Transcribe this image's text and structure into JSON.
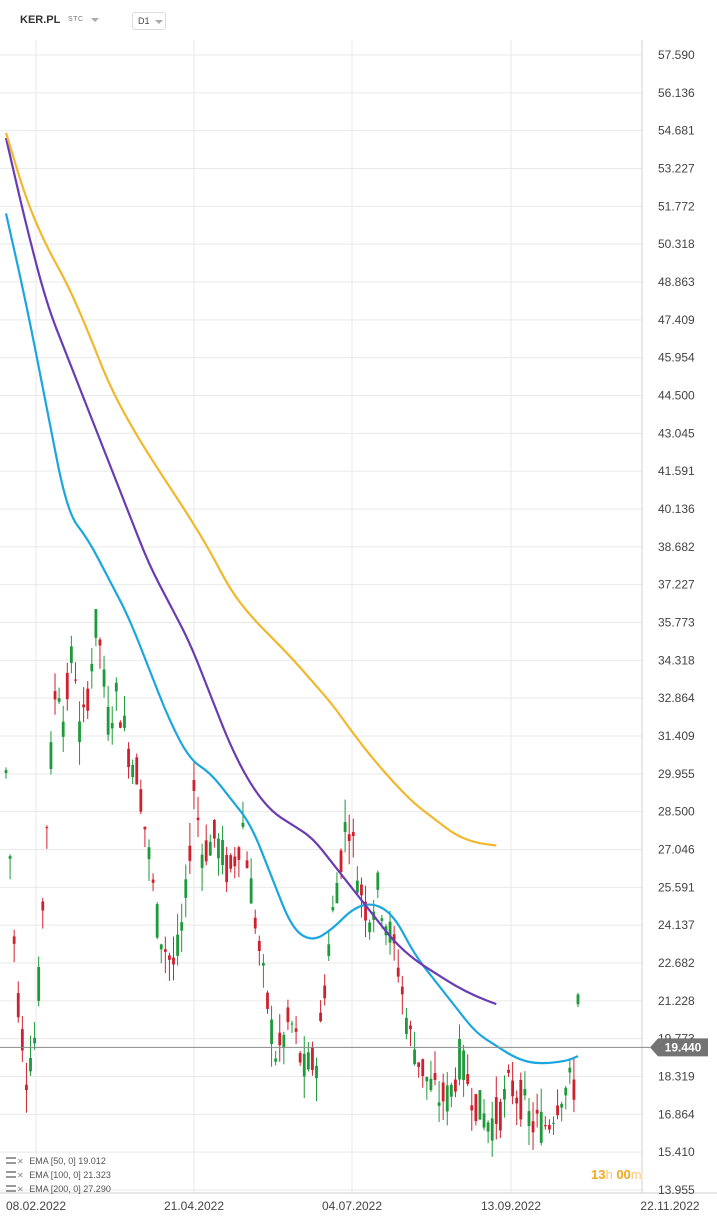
{
  "header": {
    "symbol": "KER.PL",
    "instrument_type": "STC",
    "timeframe": "D1"
  },
  "countdown": {
    "hours": "13",
    "hours_unit": "h",
    "minutes": "00",
    "minutes_unit": "m"
  },
  "legend": [
    {
      "label": "EMA",
      "params": "[50,  0]",
      "value": "19.012"
    },
    {
      "label": "EMA",
      "params": "[100,  0]",
      "value": "21.323"
    },
    {
      "label": "EMA",
      "params": "[200,  0]",
      "value": "27.290"
    }
  ],
  "colors": {
    "bull": "#1e9a3a",
    "bear": "#d0202e",
    "ema50": "#1aa6e0",
    "ema100": "#6a3bb5",
    "ema200": "#f2b72c",
    "price_badge": "#737373",
    "countdown": "#f2a71b",
    "grid": "#e9e9e9"
  },
  "chart_data": {
    "type": "candlestick",
    "symbol": "KER.PL",
    "timeframe": "D1",
    "x_tick_labels": [
      "08.02.2022",
      "21.04.2022",
      "04.07.2022",
      "13.09.2022",
      "22.11.2022"
    ],
    "y_tick_labels": [
      "57.590",
      "56.136",
      "54.681",
      "53.227",
      "51.772",
      "50.318",
      "48.863",
      "47.409",
      "45.954",
      "44.500",
      "43.045",
      "41.591",
      "40.136",
      "38.682",
      "37.227",
      "35.773",
      "34.318",
      "32.864",
      "31.409",
      "29.955",
      "28.500",
      "27.046",
      "25.591",
      "24.137",
      "22.682",
      "21.228",
      "19.773",
      "18.319",
      "16.864",
      "15.410",
      "13.955"
    ],
    "ylim": [
      13.955,
      57.59
    ],
    "last_price": "19.440",
    "series": [
      {
        "name": "EMA [50, 0]",
        "color": "#1aa6e0",
        "points": [
          [
            0,
            51.5
          ],
          [
            5,
            48
          ],
          [
            10,
            44
          ],
          [
            15,
            40
          ],
          [
            20,
            39
          ],
          [
            25,
            37.5
          ],
          [
            30,
            36
          ],
          [
            35,
            34
          ],
          [
            40,
            32
          ],
          [
            45,
            30.5
          ],
          [
            50,
            30
          ],
          [
            55,
            29
          ],
          [
            60,
            28
          ],
          [
            65,
            26
          ],
          [
            70,
            24
          ],
          [
            75,
            23.5
          ],
          [
            80,
            24
          ],
          [
            85,
            24.8
          ],
          [
            90,
            25
          ],
          [
            95,
            24.5
          ],
          [
            100,
            23
          ],
          [
            105,
            22
          ],
          [
            110,
            21
          ],
          [
            115,
            20
          ],
          [
            120,
            19.5
          ],
          [
            125,
            19
          ],
          [
            130,
            18.8
          ],
          [
            137,
            18.9
          ],
          [
            140,
            19.1
          ]
        ]
      },
      {
        "name": "EMA [100, 0]",
        "color": "#6a3bb5",
        "points": [
          [
            0,
            54.4
          ],
          [
            5,
            51
          ],
          [
            10,
            48
          ],
          [
            15,
            46
          ],
          [
            20,
            44
          ],
          [
            25,
            42
          ],
          [
            30,
            40
          ],
          [
            35,
            38
          ],
          [
            40,
            36.5
          ],
          [
            45,
            35
          ],
          [
            50,
            33
          ],
          [
            55,
            31
          ],
          [
            60,
            29.5
          ],
          [
            65,
            28.5
          ],
          [
            70,
            28
          ],
          [
            75,
            27.5
          ],
          [
            80,
            26.5
          ],
          [
            85,
            25.5
          ],
          [
            90,
            24.5
          ],
          [
            95,
            23.5
          ],
          [
            100,
            22.8
          ],
          [
            105,
            22.3
          ],
          [
            110,
            21.8
          ],
          [
            115,
            21.4
          ],
          [
            120,
            21.1
          ]
        ]
      },
      {
        "name": "EMA [200, 0]",
        "color": "#f2b72c",
        "points": [
          [
            0,
            54.6
          ],
          [
            5,
            52
          ],
          [
            10,
            50.2
          ],
          [
            15,
            48.8
          ],
          [
            20,
            47
          ],
          [
            25,
            45
          ],
          [
            30,
            43.5
          ],
          [
            35,
            42.2
          ],
          [
            40,
            41
          ],
          [
            45,
            39.8
          ],
          [
            50,
            38.5
          ],
          [
            55,
            37
          ],
          [
            60,
            36
          ],
          [
            65,
            35.2
          ],
          [
            70,
            34.4
          ],
          [
            75,
            33.5
          ],
          [
            80,
            32.6
          ],
          [
            85,
            31.5
          ],
          [
            90,
            30.5
          ],
          [
            95,
            29.6
          ],
          [
            100,
            28.8
          ],
          [
            105,
            28.2
          ],
          [
            110,
            27.6
          ],
          [
            115,
            27.3
          ],
          [
            120,
            27.2
          ]
        ]
      }
    ]
  }
}
